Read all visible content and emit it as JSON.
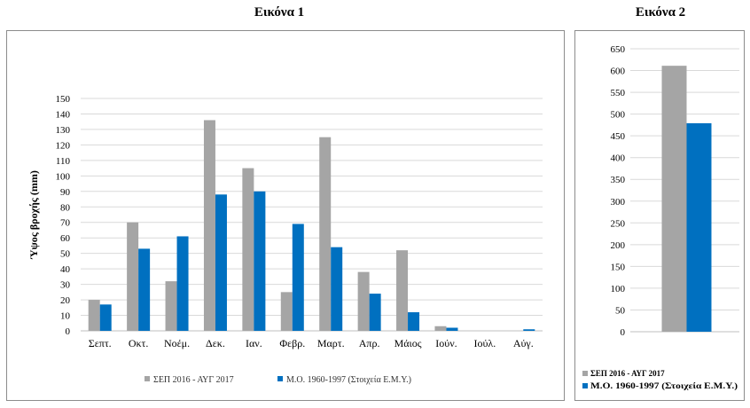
{
  "headings": {
    "left": "Εικόνα 1",
    "right": "Εικόνα 2"
  },
  "colors": {
    "series1": "#a5a5a5",
    "series2": "#0070c0",
    "grid": "#d9d9d9"
  },
  "chart_data": [
    {
      "type": "bar",
      "title": "Εικόνα 1",
      "ylabel": "Ύψος βροχής (mm)",
      "ylim": [
        0,
        150
      ],
      "yticks": [
        0,
        10,
        20,
        30,
        40,
        50,
        60,
        70,
        80,
        90,
        100,
        110,
        120,
        130,
        140,
        150
      ],
      "grid": true,
      "legend_position": "bottom",
      "categories": [
        "Σεπτ.",
        "Οκτ.",
        "Νοέμ.",
        "Δεκ.",
        "Ιαν.",
        "Φεβρ.",
        "Μαρτ.",
        "Απρ.",
        "Μάιος",
        "Ιούν.",
        "Ιούλ.",
        "Αύγ."
      ],
      "series": [
        {
          "name": "ΣΕΠ 2016 - ΑΥΓ 2017",
          "values": [
            20,
            70,
            32,
            136,
            105,
            25,
            125,
            38,
            52,
            3,
            0,
            0
          ]
        },
        {
          "name": "Μ.Ο. 1960-1997  (Στοιχεία Ε.Μ.Υ.)",
          "values": [
            17,
            53,
            61,
            88,
            90,
            69,
            54,
            24,
            12,
            2,
            0,
            1
          ]
        }
      ]
    },
    {
      "type": "bar",
      "title": "Εικόνα 2",
      "ylim": [
        0,
        650
      ],
      "yticks": [
        0,
        50,
        100,
        150,
        200,
        250,
        300,
        350,
        400,
        450,
        500,
        550,
        600,
        650
      ],
      "grid": true,
      "legend_position": "bottom",
      "categories": [
        ""
      ],
      "series": [
        {
          "name": "ΣΕΠ 2016 - ΑΥΓ 2017",
          "values": [
            611
          ]
        },
        {
          "name": "Μ.Ο. 1960-1997  (Στοιχεία Ε.Μ.Υ.)",
          "values": [
            479
          ]
        }
      ]
    }
  ]
}
